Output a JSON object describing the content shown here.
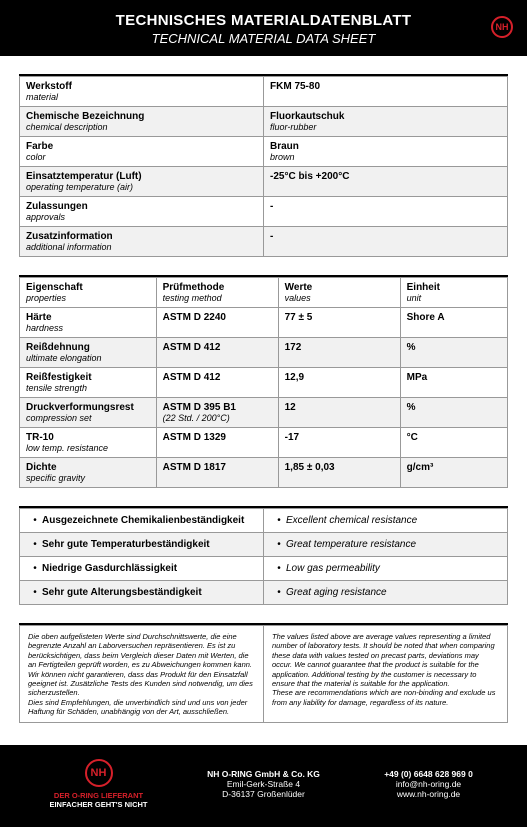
{
  "header": {
    "title": "TECHNISCHES MATERIALDATENBLATT",
    "subtitle": "TECHNICAL MATERIAL DATA SHEET",
    "logo_text": "NH",
    "logo_color": "#d6202a"
  },
  "material_table": {
    "rows": [
      {
        "label_de": "Werkstoff",
        "label_en": "material",
        "value": "FKM 75-80",
        "value_sub": ""
      },
      {
        "label_de": "Chemische Bezeichnung",
        "label_en": "chemical description",
        "value": "Fluorkautschuk",
        "value_sub": "fluor-rubber"
      },
      {
        "label_de": "Farbe",
        "label_en": "color",
        "value": "Braun",
        "value_sub": "brown"
      },
      {
        "label_de": "Einsatztemperatur (Luft)",
        "label_en": "operating temperature (air)",
        "value": "-25°C bis +200°C",
        "value_sub": ""
      },
      {
        "label_de": "Zulassungen",
        "label_en": "approvals",
        "value": "-",
        "value_sub": ""
      },
      {
        "label_de": "Zusatzinformation",
        "label_en": "additional information",
        "value": "-",
        "value_sub": ""
      }
    ]
  },
  "properties_table": {
    "headers": {
      "prop_de": "Eigenschaft",
      "prop_en": "properties",
      "method_de": "Prüfmethode",
      "method_en": "testing method",
      "val_de": "Werte",
      "val_en": "values",
      "unit_de": "Einheit",
      "unit_en": "unit"
    },
    "rows": [
      {
        "prop_de": "Härte",
        "prop_en": "hardness",
        "method": "ASTM D 2240",
        "method_sub": "",
        "value": "77 ± 5",
        "unit": "Shore A"
      },
      {
        "prop_de": "Reißdehnung",
        "prop_en": "ultimate elongation",
        "method": "ASTM D 412",
        "method_sub": "",
        "value": "172",
        "unit": "%"
      },
      {
        "prop_de": "Reißfestigkeit",
        "prop_en": "tensile strength",
        "method": "ASTM D 412",
        "method_sub": "",
        "value": "12,9",
        "unit": "MPa"
      },
      {
        "prop_de": "Druckverformungsrest",
        "prop_en": "compression set",
        "method": "ASTM D 395 B1",
        "method_sub": "(22 Std. / 200°C)",
        "value": "12",
        "unit": "%"
      },
      {
        "prop_de": "TR-10",
        "prop_en": "low temp. resistance",
        "method": "ASTM D 1329",
        "method_sub": "",
        "value": "-17",
        "unit": "°C"
      },
      {
        "prop_de": "Dichte",
        "prop_en": "specific gravity",
        "method": "ASTM D 1817",
        "method_sub": "",
        "value": "1,85 ± 0,03",
        "unit": "g/cm³"
      }
    ]
  },
  "features": {
    "rows": [
      {
        "de": "Ausgezeichnete Chemikalienbeständigkeit",
        "en": "Excellent chemical resistance"
      },
      {
        "de": "Sehr gute Temperaturbeständigkeit",
        "en": "Great temperature resistance"
      },
      {
        "de": "Niedrige Gasdurchlässigkeit",
        "en": "Low gas permeability"
      },
      {
        "de": "Sehr gute Alterungsbeständigkeit",
        "en": "Great aging resistance"
      }
    ]
  },
  "disclaimer": {
    "de": "Die oben aufgelisteten Werte sind Durchschnittswerte, die eine begrenzte Anzahl an Laborversuchen repräsentieren. Es ist zu berücksichtigen, dass beim Vergleich dieser Daten mit Werten, die an Fertigteilen geprüft worden, es zu Abweichungen kommen kann. Wir können nicht garantieren, dass das Produkt für den Einsatzfall geeignet ist. Zusätzliche Tests des Kunden sind notwendig, um dies sicherzustellen.\nDies sind Empfehlungen, die unverbindlich sind und uns von jeder Haftung für Schäden, unabhängig von der Art, ausschließen.",
    "en": "The values listed above are average values representing a limited number of laboratory tests. It should be noted that when comparing these data with values tested on precast parts, deviations may occur. We cannot guarantee that the product is suitable for the application. Additional testing by the customer is necessary to ensure that the material is suitable for the application.\nThese are recommendations which are non-binding and exclude us from any liability for damage, regardless of its nature."
  },
  "footer": {
    "logo_text": "NH",
    "slogan1": "DER O-RING LIEFERANT",
    "slogan2": "EINFACHER GEHT'S NICHT",
    "company": "NH O-RING GmbH & Co. KG",
    "street": "Emil-Gerk-Straße 4",
    "city": "D-36137 Großenlüder",
    "phone": "+49 (0) 6648 628 969 0",
    "email": "info@nh-oring.de",
    "web": "www.nh-oring.de"
  },
  "colors": {
    "accent": "#d6202a",
    "black": "#000000",
    "grid": "#999999",
    "alt_row": "#f1f1f1"
  }
}
